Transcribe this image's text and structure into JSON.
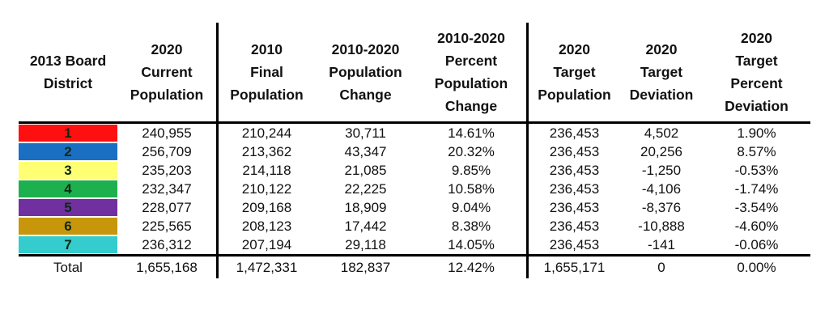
{
  "headers": [
    "2013 Board\nDistrict",
    "2020\nCurrent\nPopulation",
    "2010\nFinal\nPopulation",
    "2010-2020\nPopulation\nChange",
    "2010-2020\nPercent\nPopulation\nChange",
    "2020\nTarget\nPopulation",
    "2020\nTarget\nDeviation",
    "2020\nTarget\nPercent\nDeviation"
  ],
  "rows": [
    {
      "district": "1",
      "color": "#ff1010",
      "cells": [
        "240,955",
        "210,244",
        "30,711",
        "14.61%",
        "236,453",
        "4,502",
        "1.90%"
      ]
    },
    {
      "district": "2",
      "color": "#1b6fc3",
      "cells": [
        "256,709",
        "213,362",
        "43,347",
        "20.32%",
        "236,453",
        "20,256",
        "8.57%"
      ]
    },
    {
      "district": "3",
      "color": "#ffff73",
      "cells": [
        "235,203",
        "214,118",
        "21,085",
        "9.85%",
        "236,453",
        "-1,250",
        "-0.53%"
      ]
    },
    {
      "district": "4",
      "color": "#1cb04f",
      "cells": [
        "232,347",
        "210,122",
        "22,225",
        "10.58%",
        "236,453",
        "-4,106",
        "-1.74%"
      ]
    },
    {
      "district": "5",
      "color": "#7030a0",
      "cells": [
        "228,077",
        "209,168",
        "18,909",
        "9.04%",
        "236,453",
        "-8,376",
        "-3.54%"
      ]
    },
    {
      "district": "6",
      "color": "#c8960a",
      "cells": [
        "225,565",
        "208,123",
        "17,442",
        "8.38%",
        "236,453",
        "-10,888",
        "-4.60%"
      ]
    },
    {
      "district": "7",
      "color": "#34cccc",
      "cells": [
        "236,312",
        "207,194",
        "29,118",
        "14.05%",
        "236,453",
        "-141",
        "-0.06%"
      ]
    }
  ],
  "total": {
    "label": "Total",
    "cells": [
      "1,655,168",
      "1,472,331",
      "182,837",
      "12.42%",
      "1,655,171",
      "0",
      "0.00%"
    ]
  }
}
